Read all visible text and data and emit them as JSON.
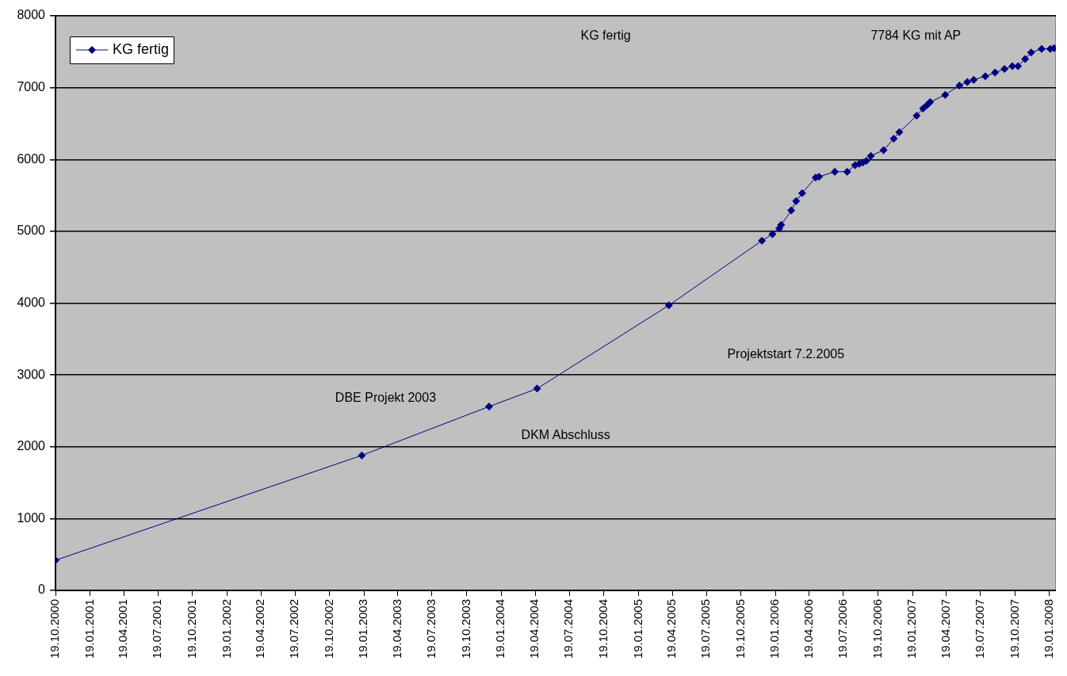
{
  "chart_data": {
    "type": "line",
    "x": [
      "2000-10-19",
      "2003-01-13",
      "2003-12-18",
      "2004-04-24",
      "2005-04-10",
      "2005-12-14",
      "2006-01-11",
      "2006-01-29",
      "2006-02-03",
      "2006-03-02",
      "2006-03-15",
      "2006-03-31",
      "2006-05-06",
      "2006-05-15",
      "2006-06-26",
      "2006-07-29",
      "2006-08-19",
      "2006-08-30",
      "2006-09-09",
      "2006-09-18",
      "2006-09-30",
      "2006-11-03",
      "2006-11-30",
      "2006-12-15",
      "2007-01-30",
      "2007-02-16",
      "2007-02-27",
      "2007-03-07",
      "2007-04-16",
      "2007-05-24",
      "2007-06-14",
      "2007-07-01",
      "2007-08-01",
      "2007-08-27",
      "2007-09-21",
      "2007-10-12",
      "2007-10-27",
      "2007-11-15",
      "2007-12-01",
      "2007-12-29",
      "2008-01-21",
      "2008-01-31"
    ],
    "series": [
      {
        "name": "KG fertig",
        "color": "#000080",
        "values": [
          420,
          1880,
          2560,
          2810,
          3970,
          4870,
          4960,
          5040,
          5090,
          5290,
          5420,
          5530,
          5750,
          5760,
          5830,
          5830,
          5920,
          5940,
          5960,
          5980,
          6050,
          6130,
          6290,
          6380,
          6610,
          6710,
          6760,
          6800,
          6900,
          7030,
          7080,
          7110,
          7160,
          7210,
          7260,
          7300,
          7300,
          7400,
          7490,
          7540,
          7540,
          7550
        ]
      }
    ],
    "xlim": [
      "2000-10-19",
      "2008-02-05"
    ],
    "xticks": [
      {
        "value": "2000-10-19",
        "label": "19.10.2000"
      },
      {
        "value": "2001-01-19",
        "label": "19.01.2001"
      },
      {
        "value": "2001-04-19",
        "label": "19.04.2001"
      },
      {
        "value": "2001-07-19",
        "label": "19.07.2001"
      },
      {
        "value": "2001-10-19",
        "label": "19.10.2001"
      },
      {
        "value": "2002-01-19",
        "label": "19.01.2002"
      },
      {
        "value": "2002-04-19",
        "label": "19.04.2002"
      },
      {
        "value": "2002-07-19",
        "label": "19.07.2002"
      },
      {
        "value": "2002-10-19",
        "label": "19.10.2002"
      },
      {
        "value": "2003-01-19",
        "label": "19.01.2003"
      },
      {
        "value": "2003-04-19",
        "label": "19.04.2003"
      },
      {
        "value": "2003-07-19",
        "label": "19.07.2003"
      },
      {
        "value": "2003-10-19",
        "label": "19.10.2003"
      },
      {
        "value": "2004-01-19",
        "label": "19.01.2004"
      },
      {
        "value": "2004-04-19",
        "label": "19.04.2004"
      },
      {
        "value": "2004-07-19",
        "label": "19.07.2004"
      },
      {
        "value": "2004-10-19",
        "label": "19.10.2004"
      },
      {
        "value": "2005-01-19",
        "label": "19.01.2005"
      },
      {
        "value": "2005-04-19",
        "label": "19.04.2005"
      },
      {
        "value": "2005-07-19",
        "label": "19.07.2005"
      },
      {
        "value": "2005-10-19",
        "label": "19.10.2005"
      },
      {
        "value": "2006-01-19",
        "label": "19.01.2006"
      },
      {
        "value": "2006-04-19",
        "label": "19.04.2006"
      },
      {
        "value": "2006-07-19",
        "label": "19.07.2006"
      },
      {
        "value": "2006-10-19",
        "label": "19.10.2006"
      },
      {
        "value": "2007-01-19",
        "label": "19.01.2007"
      },
      {
        "value": "2007-04-19",
        "label": "19.04.2007"
      },
      {
        "value": "2007-07-19",
        "label": "19.07.2007"
      },
      {
        "value": "2007-10-19",
        "label": "19.10.2007"
      },
      {
        "value": "2008-01-19",
        "label": "19.01.2008"
      }
    ],
    "ylim": [
      0,
      8000
    ],
    "yticks": [
      0,
      1000,
      2000,
      3000,
      4000,
      5000,
      6000,
      7000,
      8000
    ],
    "grid": "y",
    "legend": "top left",
    "marker": "diamond",
    "line_style": "solid",
    "annotations": [
      "KG fertig",
      "7784 KG mit AP",
      "Projektstart 7.2.2005",
      "DBE Projekt 2003",
      "DKM Abschluss"
    ]
  }
}
